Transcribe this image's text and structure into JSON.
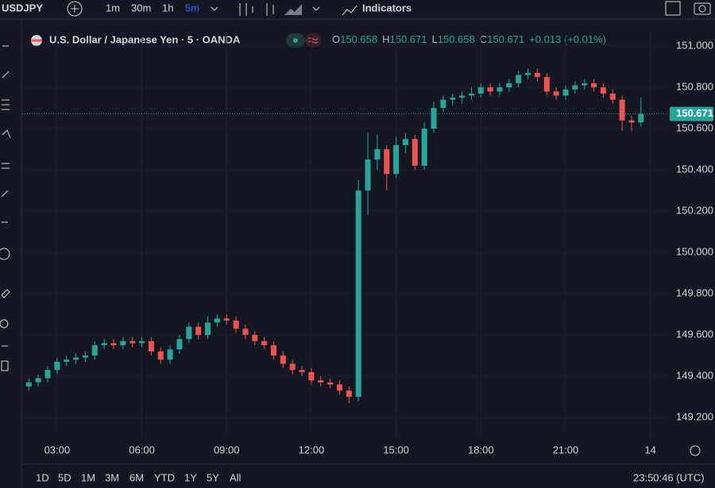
{
  "toolbar": {
    "symbol": "USDJPY",
    "intervals": [
      "1m",
      "30m",
      "1h",
      "5m"
    ],
    "active_interval": 3,
    "indicators": "Indicators"
  },
  "chart_data": {
    "type": "candlestick",
    "title": "U.S. Dollar / Japanese Yen · 5 · OANDA",
    "legend": {
      "o_key": "O",
      "o": "150.658",
      "h_key": "H",
      "h": "150.671",
      "l_key": "L",
      "l": "150.658",
      "c_key": "C",
      "c": "150.671",
      "change": "+0.013 (+0.01%)"
    },
    "last_price": 150.671,
    "up_color": "#26a69a",
    "down_color": "#ef5350",
    "grid": true,
    "xlim": [
      106,
      1476
    ],
    "xticks": [
      {
        "value": 180,
        "label": "03:00"
      },
      {
        "value": 360,
        "label": "06:00"
      },
      {
        "value": 540,
        "label": "09:00"
      },
      {
        "value": 720,
        "label": "12:00"
      },
      {
        "value": 900,
        "label": "15:00"
      },
      {
        "value": 1080,
        "label": "18:00"
      },
      {
        "value": 1260,
        "label": "21:00"
      },
      {
        "value": 1440,
        "label": "14"
      }
    ],
    "ylim": [
      149.108,
      151.085
    ],
    "yticks": [
      {
        "value": 149.2,
        "label": "149.200"
      },
      {
        "value": 149.4,
        "label": "149.400"
      },
      {
        "value": 149.6,
        "label": "149.600"
      },
      {
        "value": 149.8,
        "label": "149.800"
      },
      {
        "value": 150,
        "label": "150.000"
      },
      {
        "value": 150.2,
        "label": "150.200"
      },
      {
        "value": 150.4,
        "label": "150.400"
      },
      {
        "value": 150.6,
        "label": "150.600"
      },
      {
        "value": 150.8,
        "label": "150.800"
      },
      {
        "value": 151,
        "label": "151.000"
      }
    ],
    "x": [
      120,
      140,
      160,
      180,
      200,
      220,
      240,
      260,
      280,
      300,
      320,
      340,
      360,
      380,
      400,
      420,
      440,
      460,
      480,
      500,
      520,
      540,
      560,
      580,
      600,
      620,
      640,
      660,
      680,
      700,
      720,
      740,
      760,
      780,
      800,
      820,
      840,
      860,
      880,
      900,
      920,
      940,
      960,
      980,
      1000,
      1020,
      1040,
      1060,
      1080,
      1100,
      1120,
      1140,
      1160,
      1180,
      1200,
      1220,
      1240,
      1260,
      1280,
      1300,
      1320,
      1340,
      1360,
      1380,
      1400,
      1420
    ],
    "open": [
      149.35,
      149.37,
      149.39,
      149.43,
      149.47,
      149.48,
      149.49,
      149.5,
      149.55,
      149.56,
      149.55,
      149.57,
      149.56,
      149.57,
      149.52,
      149.48,
      149.53,
      149.58,
      149.64,
      149.6,
      149.66,
      149.68,
      149.67,
      149.63,
      149.6,
      149.57,
      149.55,
      149.5,
      149.46,
      149.43,
      149.42,
      149.38,
      149.37,
      149.36,
      149.33,
      149.3,
      150.3,
      150.45,
      150.5,
      150.38,
      150.52,
      150.55,
      150.42,
      150.6,
      150.7,
      150.74,
      150.75,
      150.76,
      150.77,
      150.8,
      150.78,
      150.8,
      150.82,
      150.86,
      150.87,
      150.85,
      150.78,
      150.76,
      150.79,
      150.81,
      150.82,
      150.8,
      150.77,
      150.74,
      150.64,
      150.63
    ],
    "high": [
      149.39,
      149.41,
      149.45,
      149.49,
      149.5,
      149.51,
      149.52,
      149.57,
      149.58,
      149.58,
      149.59,
      149.59,
      149.59,
      149.59,
      149.54,
      149.55,
      149.6,
      149.66,
      149.66,
      149.69,
      149.7,
      149.7,
      149.69,
      149.65,
      149.62,
      149.59,
      149.57,
      149.52,
      149.48,
      149.45,
      149.44,
      149.4,
      149.39,
      149.38,
      149.35,
      150.35,
      150.58,
      150.57,
      150.52,
      150.56,
      150.58,
      150.57,
      150.63,
      150.73,
      150.76,
      150.77,
      150.78,
      150.8,
      150.82,
      150.82,
      150.82,
      150.84,
      150.88,
      150.89,
      150.89,
      150.87,
      150.8,
      150.81,
      150.83,
      150.84,
      150.84,
      150.82,
      150.79,
      150.76,
      150.66,
      150.75
    ],
    "low": [
      149.33,
      149.35,
      149.37,
      149.41,
      149.45,
      149.46,
      149.47,
      149.48,
      149.53,
      149.53,
      149.53,
      149.54,
      149.54,
      149.5,
      149.46,
      149.46,
      149.51,
      149.56,
      149.58,
      149.58,
      149.64,
      149.65,
      149.61,
      149.58,
      149.55,
      149.53,
      149.48,
      149.44,
      149.41,
      149.4,
      149.36,
      149.35,
      149.34,
      149.31,
      149.27,
      149.28,
      150.18,
      150.4,
      150.3,
      150.36,
      150.48,
      150.4,
      150.4,
      150.58,
      150.68,
      150.71,
      150.72,
      150.74,
      150.75,
      150.76,
      150.76,
      150.78,
      150.8,
      150.84,
      150.83,
      150.76,
      150.74,
      150.74,
      150.77,
      150.79,
      150.78,
      150.75,
      150.72,
      150.59,
      150.59,
      150.61
    ],
    "close": [
      149.37,
      149.39,
      149.43,
      149.47,
      149.48,
      149.49,
      149.5,
      149.55,
      149.56,
      149.55,
      149.57,
      149.56,
      149.57,
      149.52,
      149.48,
      149.53,
      149.58,
      149.64,
      149.6,
      149.66,
      149.68,
      149.67,
      149.63,
      149.6,
      149.57,
      149.55,
      149.5,
      149.46,
      149.43,
      149.42,
      149.38,
      149.37,
      149.36,
      149.33,
      149.3,
      150.3,
      150.45,
      150.5,
      150.38,
      150.52,
      150.55,
      150.42,
      150.6,
      150.7,
      150.74,
      150.75,
      150.76,
      150.77,
      150.8,
      150.78,
      150.8,
      150.82,
      150.86,
      150.87,
      150.85,
      150.78,
      150.76,
      150.79,
      150.81,
      150.82,
      150.8,
      150.77,
      150.74,
      150.64,
      150.63,
      150.671
    ]
  },
  "footer": {
    "ranges": [
      "1D",
      "5D",
      "1M",
      "3M",
      "6M",
      "YTD",
      "1Y",
      "5Y",
      "All"
    ],
    "clock": "23:50:46 (UTC)"
  }
}
